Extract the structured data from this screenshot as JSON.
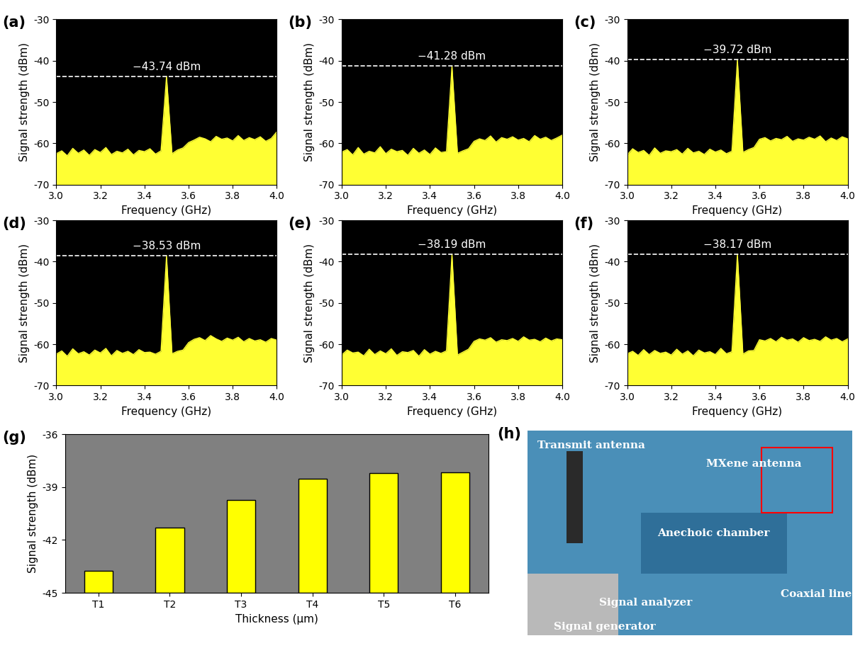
{
  "chart_data": [
    {
      "type": "line",
      "panel": "(a)",
      "x_label": "Frequency (GHz)",
      "y_label": "Signal strength (dBm)",
      "x": [
        3.0,
        3.025,
        3.05,
        3.075,
        3.1,
        3.125,
        3.15,
        3.175,
        3.2,
        3.225,
        3.25,
        3.275,
        3.3,
        3.325,
        3.35,
        3.375,
        3.4,
        3.425,
        3.45,
        3.475,
        3.5,
        3.525,
        3.55,
        3.575,
        3.6,
        3.625,
        3.65,
        3.675,
        3.7,
        3.725,
        3.75,
        3.775,
        3.8,
        3.825,
        3.85,
        3.875,
        3.9,
        3.925,
        3.95,
        3.975,
        4.0
      ],
      "values": [
        -62.5,
        -61.8,
        -63.0,
        -61.2,
        -62.4,
        -61.6,
        -62.9,
        -61.5,
        -62.2,
        -61.0,
        -62.7,
        -61.9,
        -62.3,
        -61.4,
        -62.8,
        -61.7,
        -62.0,
        -61.3,
        -62.6,
        -61.8,
        -43.74,
        -62.5,
        -61.6,
        -61.1,
        -59.8,
        -59.2,
        -58.5,
        -58.9,
        -59.6,
        -58.3,
        -59.0,
        -58.7,
        -59.4,
        -58.1,
        -59.3,
        -58.6,
        -59.1,
        -58.4,
        -59.5,
        -58.8,
        -57.2
      ],
      "color": "#ffff33",
      "peak": -43.74,
      "peak_label": "−43.74 dBm",
      "xlim": [
        3.0,
        4.0
      ],
      "ylim": [
        -70,
        -30
      ],
      "xticks": [
        {
          "value": 3.0,
          "label": "3.0"
        },
        3.2,
        3.4,
        3.6,
        3.8,
        {
          "value": 4.0,
          "label": "4.0"
        }
      ],
      "yticks": [
        -70,
        -60,
        -50,
        -40,
        -30
      ]
    },
    {
      "type": "line",
      "panel": "(b)",
      "x_label": "Frequency (GHz)",
      "y_label": "Signal strength (dBm)",
      "x": [
        3.0,
        3.025,
        3.05,
        3.075,
        3.1,
        3.125,
        3.15,
        3.175,
        3.2,
        3.225,
        3.25,
        3.275,
        3.3,
        3.325,
        3.35,
        3.375,
        3.4,
        3.425,
        3.45,
        3.475,
        3.5,
        3.525,
        3.55,
        3.575,
        3.6,
        3.625,
        3.65,
        3.675,
        3.7,
        3.725,
        3.75,
        3.775,
        3.8,
        3.825,
        3.85,
        3.875,
        3.9,
        3.925,
        3.95,
        3.975,
        4.0
      ],
      "values": [
        -62.1,
        -61.5,
        -62.8,
        -61.0,
        -62.6,
        -61.9,
        -62.3,
        -60.8,
        -62.5,
        -61.4,
        -62.0,
        -61.7,
        -62.9,
        -61.2,
        -62.4,
        -61.6,
        -62.7,
        -61.1,
        -62.2,
        -62.0,
        -41.28,
        -62.4,
        -61.8,
        -61.3,
        -59.5,
        -58.9,
        -59.3,
        -58.2,
        -59.7,
        -58.6,
        -59.0,
        -58.4,
        -59.2,
        -58.8,
        -59.6,
        -58.1,
        -59.0,
        -58.5,
        -59.3,
        -58.7,
        -58.0
      ],
      "color": "#ffff33",
      "peak": -41.28,
      "peak_label": "−41.28 dBm",
      "xlim": [
        3.0,
        4.0
      ],
      "ylim": [
        -70,
        -30
      ],
      "xticks": [
        {
          "value": 3.0,
          "label": "3.0"
        },
        3.2,
        3.4,
        3.6,
        3.8,
        {
          "value": 4.0,
          "label": "4.0"
        }
      ],
      "yticks": [
        -70,
        -60,
        -50,
        -40,
        -30
      ]
    },
    {
      "type": "line",
      "panel": "(c)",
      "x_label": "Frequency (GHz)",
      "y_label": "Signal strength (dBm)",
      "x": [
        3.0,
        3.025,
        3.05,
        3.075,
        3.1,
        3.125,
        3.15,
        3.175,
        3.2,
        3.225,
        3.25,
        3.275,
        3.3,
        3.325,
        3.35,
        3.375,
        3.4,
        3.425,
        3.45,
        3.475,
        3.5,
        3.525,
        3.55,
        3.575,
        3.6,
        3.625,
        3.65,
        3.675,
        3.7,
        3.725,
        3.75,
        3.775,
        3.8,
        3.825,
        3.85,
        3.875,
        3.9,
        3.925,
        3.95,
        3.975,
        4.0
      ],
      "values": [
        -62.8,
        -61.3,
        -62.2,
        -61.7,
        -62.9,
        -61.1,
        -62.4,
        -61.8,
        -62.0,
        -61.5,
        -62.6,
        -61.2,
        -62.3,
        -61.9,
        -62.7,
        -61.4,
        -62.1,
        -61.6,
        -62.5,
        -61.9,
        -39.72,
        -62.2,
        -61.5,
        -61.0,
        -59.0,
        -58.6,
        -59.4,
        -58.8,
        -59.1,
        -58.3,
        -59.5,
        -58.9,
        -59.2,
        -58.5,
        -59.0,
        -58.2,
        -59.6,
        -58.7,
        -59.3,
        -58.4,
        -58.9
      ],
      "color": "#ffff33",
      "peak": -39.72,
      "peak_label": "−39.72 dBm",
      "xlim": [
        3.0,
        4.0
      ],
      "ylim": [
        -70,
        -30
      ],
      "xticks": [
        {
          "value": 3.0,
          "label": "3.0"
        },
        3.2,
        3.4,
        3.6,
        3.8,
        {
          "value": 4.0,
          "label": "4.0"
        }
      ],
      "yticks": [
        -70,
        -60,
        -50,
        -40,
        -30
      ]
    },
    {
      "type": "line",
      "panel": "(d)",
      "x_label": "Frequency (GHz)",
      "y_label": "Signal strength (dBm)",
      "x": [
        3.0,
        3.025,
        3.05,
        3.075,
        3.1,
        3.125,
        3.15,
        3.175,
        3.2,
        3.225,
        3.25,
        3.275,
        3.3,
        3.325,
        3.35,
        3.375,
        3.4,
        3.425,
        3.45,
        3.475,
        3.5,
        3.525,
        3.55,
        3.575,
        3.6,
        3.625,
        3.65,
        3.675,
        3.7,
        3.725,
        3.75,
        3.775,
        3.8,
        3.825,
        3.85,
        3.875,
        3.9,
        3.925,
        3.95,
        3.975,
        4.0
      ],
      "values": [
        -62.4,
        -61.6,
        -62.9,
        -61.1,
        -62.3,
        -61.8,
        -62.6,
        -61.4,
        -62.1,
        -61.0,
        -62.8,
        -61.5,
        -62.2,
        -61.7,
        -62.5,
        -61.3,
        -62.0,
        -61.9,
        -62.4,
        -61.7,
        -38.53,
        -62.3,
        -61.7,
        -61.4,
        -59.6,
        -58.8,
        -58.4,
        -59.1,
        -57.9,
        -58.7,
        -59.3,
        -58.5,
        -59.0,
        -58.3,
        -59.4,
        -58.6,
        -59.2,
        -58.9,
        -59.5,
        -58.6,
        -59.0
      ],
      "color": "#ffff33",
      "peak": -38.53,
      "peak_label": "−38.53 dBm",
      "xlim": [
        3.0,
        4.0
      ],
      "ylim": [
        -70,
        -30
      ],
      "xticks": [
        {
          "value": 3.0,
          "label": "3.0"
        },
        3.2,
        3.4,
        3.6,
        3.8,
        {
          "value": 4.0,
          "label": "4.0"
        }
      ],
      "yticks": [
        -70,
        -60,
        -50,
        -40,
        -30
      ]
    },
    {
      "type": "line",
      "panel": "(e)",
      "x_label": "Frequency (GHz)",
      "y_label": "Signal strength (dBm)",
      "x": [
        3.0,
        3.025,
        3.05,
        3.075,
        3.1,
        3.125,
        3.15,
        3.175,
        3.2,
        3.225,
        3.25,
        3.275,
        3.3,
        3.325,
        3.35,
        3.375,
        3.4,
        3.425,
        3.45,
        3.475,
        3.5,
        3.525,
        3.55,
        3.575,
        3.6,
        3.625,
        3.65,
        3.675,
        3.7,
        3.725,
        3.75,
        3.775,
        3.8,
        3.825,
        3.85,
        3.875,
        3.9,
        3.925,
        3.95,
        3.975,
        4.0
      ],
      "values": [
        -62.6,
        -61.4,
        -62.1,
        -61.9,
        -62.8,
        -61.2,
        -62.5,
        -61.6,
        -62.3,
        -61.1,
        -62.7,
        -61.8,
        -62.0,
        -61.5,
        -62.9,
        -61.3,
        -62.4,
        -61.7,
        -62.2,
        -61.6,
        -38.19,
        -62.6,
        -61.9,
        -61.2,
        -59.3,
        -58.7,
        -59.0,
        -58.4,
        -59.5,
        -58.9,
        -59.1,
        -58.6,
        -59.3,
        -58.2,
        -59.0,
        -58.8,
        -59.4,
        -58.5,
        -59.2,
        -58.7,
        -58.9
      ],
      "color": "#ffff33",
      "peak": -38.19,
      "peak_label": "−38.19 dBm",
      "xlim": [
        3.0,
        4.0
      ],
      "ylim": [
        -70,
        -30
      ],
      "xticks": [
        {
          "value": 3.0,
          "label": "3.0"
        },
        3.2,
        3.4,
        3.6,
        3.8,
        {
          "value": 4.0,
          "label": "4.0"
        }
      ],
      "yticks": [
        -70,
        -60,
        -50,
        -40,
        -30
      ]
    },
    {
      "type": "line",
      "panel": "(f)",
      "x_label": "Frequency (GHz)",
      "y_label": "Signal strength (dBm)",
      "x": [
        3.0,
        3.025,
        3.05,
        3.075,
        3.1,
        3.125,
        3.15,
        3.175,
        3.2,
        3.225,
        3.25,
        3.275,
        3.3,
        3.325,
        3.35,
        3.375,
        3.4,
        3.425,
        3.45,
        3.475,
        3.5,
        3.525,
        3.55,
        3.575,
        3.6,
        3.625,
        3.65,
        3.675,
        3.7,
        3.725,
        3.75,
        3.775,
        3.8,
        3.825,
        3.85,
        3.875,
        3.9,
        3.925,
        3.95,
        3.975,
        4.0
      ],
      "values": [
        -62.3,
        -61.7,
        -62.7,
        -61.3,
        -62.5,
        -61.5,
        -62.2,
        -61.9,
        -62.6,
        -61.2,
        -62.4,
        -61.6,
        -62.8,
        -61.4,
        -62.1,
        -61.8,
        -62.5,
        -61.0,
        -62.3,
        -61.8,
        -38.17,
        -62.4,
        -61.6,
        -61.5,
        -58.9,
        -59.2,
        -58.6,
        -59.4,
        -58.3,
        -59.0,
        -58.7,
        -59.5,
        -58.4,
        -59.1,
        -58.8,
        -59.3,
        -58.2,
        -59.0,
        -58.6,
        -59.4,
        -58.7
      ],
      "color": "#ffff33",
      "peak": -38.17,
      "peak_label": "−38.17 dBm",
      "xlim": [
        3.0,
        4.0
      ],
      "ylim": [
        -70,
        -30
      ],
      "xticks": [
        {
          "value": 3.0,
          "label": "3.0"
        },
        3.2,
        3.4,
        3.6,
        3.8,
        {
          "value": 4.0,
          "label": "4.0"
        }
      ],
      "yticks": [
        -70,
        -60,
        -50,
        -40,
        -30
      ]
    },
    {
      "type": "bar",
      "panel": "(g)",
      "x_label": "Thickness (μm)",
      "y_label": "Signal strength (dBm)",
      "categories": [
        "T1",
        "T2",
        "T3",
        "T4",
        "T5",
        "T6"
      ],
      "values": [
        -43.74,
        -41.28,
        -39.72,
        -38.53,
        -38.19,
        -38.17
      ],
      "color": "#ffff00",
      "ylim": [
        -45,
        -36
      ],
      "yticks": [
        -45,
        -42,
        -39,
        -36
      ]
    }
  ],
  "photo": {
    "panel": "(h)",
    "labels": [
      "Transmit antenna",
      "MXene antenna",
      "Anechoic chamber",
      "Signal analyzer",
      "Coaxial line",
      "Signal generator"
    ]
  }
}
